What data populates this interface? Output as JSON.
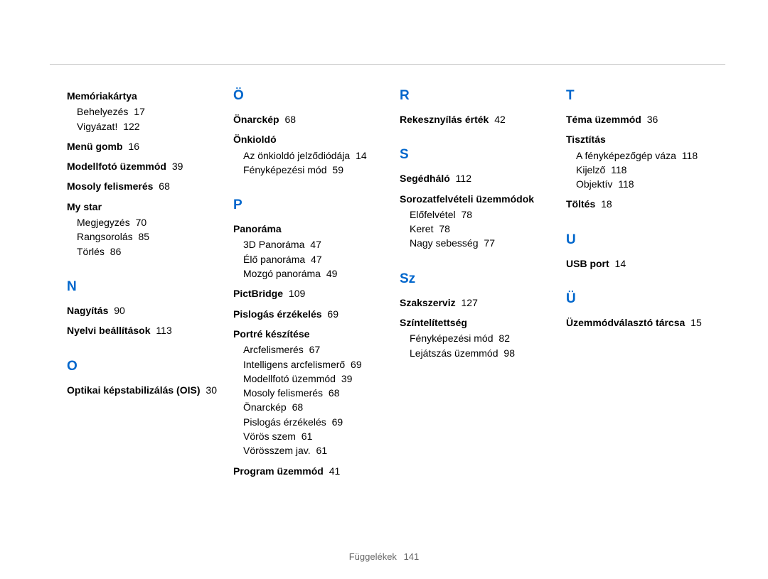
{
  "footer": {
    "label": "Függelékek",
    "page": "141"
  },
  "columns": [
    {
      "sections": [
        {
          "letter": null,
          "entries": [
            {
              "term": "Memóriakártya",
              "page": null,
              "subs": [
                {
                  "label": "Behelyezés",
                  "page": "17"
                },
                {
                  "label": "Vigyázat!",
                  "page": "122"
                }
              ]
            },
            {
              "term": "Menü gomb",
              "page": "16",
              "subs": []
            },
            {
              "term": "Modellfotó üzemmód",
              "page": "39",
              "subs": []
            },
            {
              "term": "Mosoly felismerés",
              "page": "68",
              "subs": []
            },
            {
              "term": "My star",
              "page": null,
              "subs": [
                {
                  "label": "Megjegyzés",
                  "page": "70"
                },
                {
                  "label": "Rangsorolás",
                  "page": "85"
                },
                {
                  "label": "Törlés",
                  "page": "86"
                }
              ]
            }
          ]
        },
        {
          "letter": "N",
          "entries": [
            {
              "term": "Nagyítás",
              "page": "90",
              "subs": []
            },
            {
              "term": "Nyelvi beállítások",
              "page": "113",
              "subs": []
            }
          ]
        },
        {
          "letter": "O",
          "entries": [
            {
              "term": "Optikai képstabilizálás (OIS)",
              "page": "30",
              "subs": []
            }
          ]
        }
      ]
    },
    {
      "sections": [
        {
          "letter": "Ö",
          "entries": [
            {
              "term": "Önarckép",
              "page": "68",
              "subs": []
            },
            {
              "term": "Önkioldó",
              "page": null,
              "subs": [
                {
                  "label": "Az önkioldó jelződiódája",
                  "page": "14"
                },
                {
                  "label": "Fényképezési mód",
                  "page": "59"
                }
              ]
            }
          ]
        },
        {
          "letter": "P",
          "entries": [
            {
              "term": "Panoráma",
              "page": null,
              "subs": [
                {
                  "label": "3D Panoráma",
                  "page": "47"
                },
                {
                  "label": "Élő panoráma",
                  "page": "47"
                },
                {
                  "label": "Mozgó panoráma",
                  "page": "49"
                }
              ]
            },
            {
              "term": "PictBridge",
              "page": "109",
              "subs": []
            },
            {
              "term": "Pislogás érzékelés",
              "page": "69",
              "subs": []
            },
            {
              "term": "Portré készítése",
              "page": null,
              "subs": [
                {
                  "label": "Arcfelismerés",
                  "page": "67"
                },
                {
                  "label": "Intelligens arcfelismerő",
                  "page": "69"
                },
                {
                  "label": "Modellfotó üzemmód",
                  "page": "39"
                },
                {
                  "label": "Mosoly felismerés",
                  "page": "68"
                },
                {
                  "label": "Önarckép",
                  "page": "68"
                },
                {
                  "label": "Pislogás érzékelés",
                  "page": "69"
                },
                {
                  "label": "Vörös szem",
                  "page": "61"
                },
                {
                  "label": "Vörösszem jav.",
                  "page": "61"
                }
              ]
            },
            {
              "term": "Program üzemmód",
              "page": "41",
              "subs": []
            }
          ]
        }
      ]
    },
    {
      "sections": [
        {
          "letter": "R",
          "entries": [
            {
              "term": "Rekesznyílás érték",
              "page": "42",
              "subs": []
            }
          ]
        },
        {
          "letter": "S",
          "entries": [
            {
              "term": "Segédháló",
              "page": "112",
              "subs": []
            },
            {
              "term": "Sorozatfelvételi üzemmódok",
              "page": null,
              "subs": [
                {
                  "label": "Előfelvétel",
                  "page": "78"
                },
                {
                  "label": "Keret",
                  "page": "78"
                },
                {
                  "label": "Nagy sebesség",
                  "page": "77"
                }
              ]
            }
          ]
        },
        {
          "letter": "Sz",
          "entries": [
            {
              "term": "Szakszerviz",
              "page": "127",
              "subs": []
            },
            {
              "term": "Színtelítettség",
              "page": null,
              "subs": [
                {
                  "label": "Fényképezési mód",
                  "page": "82"
                },
                {
                  "label": "Lejátszás üzemmód",
                  "page": "98"
                }
              ]
            }
          ]
        }
      ]
    },
    {
      "sections": [
        {
          "letter": "T",
          "entries": [
            {
              "term": "Téma üzemmód",
              "page": "36",
              "subs": []
            },
            {
              "term": "Tisztítás",
              "page": null,
              "subs": [
                {
                  "label": "A fényképezőgép váza",
                  "page": "118"
                },
                {
                  "label": "Kijelző",
                  "page": "118"
                },
                {
                  "label": "Objektív",
                  "page": "118"
                }
              ]
            },
            {
              "term": "Töltés",
              "page": "18",
              "subs": []
            }
          ]
        },
        {
          "letter": "U",
          "entries": [
            {
              "term": "USB port",
              "page": "14",
              "subs": []
            }
          ]
        },
        {
          "letter": "Ü",
          "entries": [
            {
              "term": "Üzemmódválasztó tárcsa",
              "page": "15",
              "subs": []
            }
          ]
        }
      ]
    }
  ]
}
